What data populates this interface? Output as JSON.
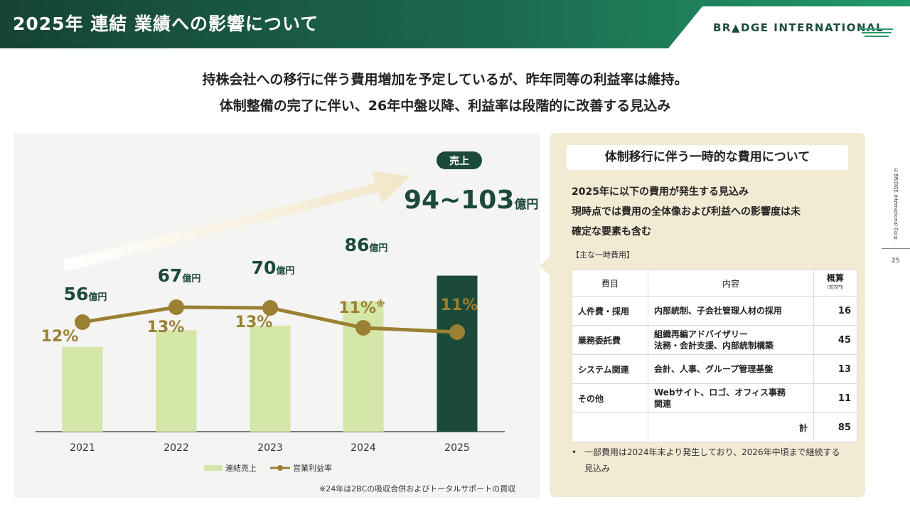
{
  "header": {
    "title": "2025年 連結 業績への影響について",
    "logo_text": "BR▲DGE INTERNATIONAL",
    "copyright": "©BRIDGE International Corp.",
    "page_number": "25"
  },
  "lead": {
    "line1": "持株会社への移行に伴う費用増加を予定しているが、昨年同等の利益率は維持。",
    "line2": "体制整備の完了に伴い、26年中盤以降、利益率は段階的に改善する見込み"
  },
  "chart_data": {
    "type": "bar",
    "categories": [
      "2021",
      "2022",
      "2023",
      "2024",
      "2025"
    ],
    "series": [
      {
        "name": "連結売上",
        "type": "bar",
        "values": [
          56,
          67,
          70,
          86,
          103
        ],
        "labels": [
          "56",
          "67",
          "70",
          "86",
          ""
        ],
        "unit": "億円"
      },
      {
        "name": "営業利益率",
        "type": "line",
        "values": [
          12,
          13,
          13,
          11,
          11
        ],
        "labels": [
          "12%",
          "13%",
          "13%",
          "11%※",
          "11%"
        ]
      }
    ],
    "forecast_badge": "売上",
    "forecast_value": "94~103",
    "forecast_unit": "億円",
    "footnote": "※24年は2BCの吸収合併およびトータルサポートの買収",
    "colors": {
      "bar": "#d5e6a9",
      "bar_forecast": "#1c4a38",
      "line": "#9b8033",
      "value_text": "#1c4a38"
    }
  },
  "right_panel": {
    "title": "体制移行に伴う一時的な費用について",
    "lines": [
      "2025年に以下の費用が発生する見込み",
      "現時点では費用の全体像および利益への影響度は未",
      "確定な要素も含む"
    ],
    "subheading": "【主な一時費用】",
    "table": {
      "headers": [
        "費目",
        "内容",
        "概算"
      ],
      "unit": "(百万円)",
      "rows": [
        {
          "item": "人件費・採用",
          "content": "内部統制、子会社管理人材の採用",
          "amount": "16"
        },
        {
          "item": "業務委託費",
          "content": "組織再編アドバイザリー\n法務・会計支援、内部統制構築",
          "amount": "45"
        },
        {
          "item": "システム関連",
          "content": "会計、人事、グループ管理基盤",
          "amount": "13"
        },
        {
          "item": "その他",
          "content": "Webサイト、ロゴ、オフィス事務\n関連",
          "amount": "11"
        }
      ],
      "total_label": "計",
      "total_amount": "85"
    },
    "bullet": "一部費用は2024年末より発生しており、2026年中頃まで継続する見込み"
  }
}
